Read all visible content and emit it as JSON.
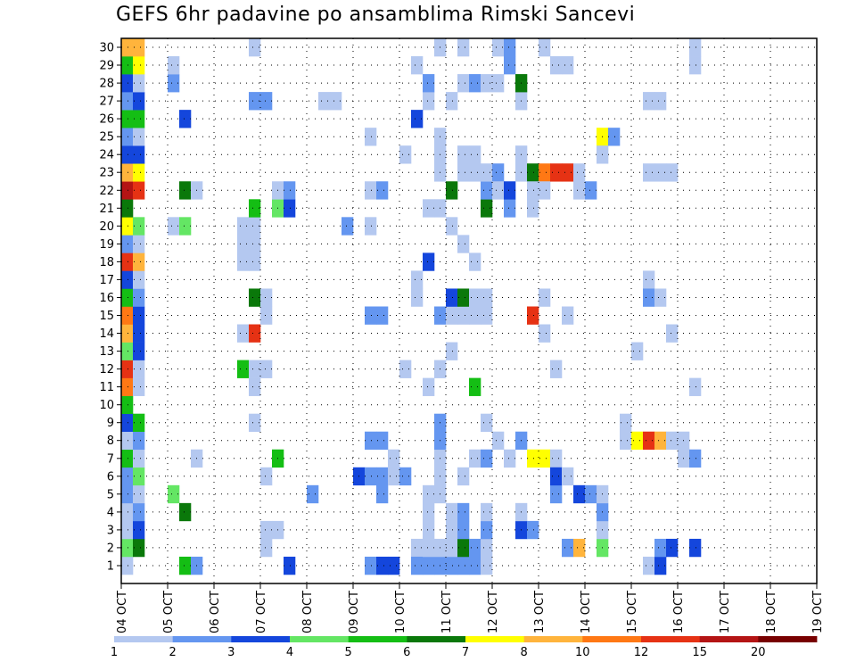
{
  "chart_data": {
    "type": "heatmap",
    "title": "GEFS 6hr padavine po ansamblima Rimski Sancevi",
    "x_labels": [
      "04 OCT",
      "05 OCT",
      "06 OCT",
      "07 OCT",
      "08 OCT",
      "09 OCT",
      "10 OCT",
      "11 OCT",
      "12 OCT",
      "13 OCT",
      "14 OCT",
      "15 OCT",
      "16 OCT",
      "17 OCT",
      "18 OCT",
      "19 OCT"
    ],
    "y_labels": [
      "1",
      "2",
      "3",
      "4",
      "5",
      "6",
      "7",
      "8",
      "9",
      "10",
      "11",
      "12",
      "13",
      "14",
      "15",
      "16",
      "17",
      "18",
      "19",
      "20",
      "21",
      "22",
      "23",
      "24",
      "25",
      "26",
      "27",
      "28",
      "29",
      "30"
    ],
    "colorbar": {
      "colors": [
        "#b4c8f0",
        "#6496f0",
        "#1446dc",
        "#64e664",
        "#14be14",
        "#0a780a",
        "#ffff00",
        "#ffb43c",
        "#ff7814",
        "#e63214",
        "#b41414",
        "#780000"
      ],
      "labels": [
        "1",
        "2",
        "3",
        "4",
        "5",
        "6",
        "7",
        "8",
        "10",
        "12",
        "15",
        "20"
      ]
    },
    "grid": true,
    "cells": [
      [
        0,
        0,
        0
      ],
      [
        0,
        1,
        3
      ],
      [
        0,
        2,
        0
      ],
      [
        0,
        3,
        0
      ],
      [
        0,
        4,
        1
      ],
      [
        0,
        5,
        1
      ],
      [
        0,
        6,
        4
      ],
      [
        0,
        7,
        0
      ],
      [
        0,
        8,
        2
      ],
      [
        0,
        9,
        4
      ],
      [
        0,
        10,
        8
      ],
      [
        0,
        11,
        9
      ],
      [
        0,
        12,
        3
      ],
      [
        0,
        13,
        7
      ],
      [
        0,
        14,
        8
      ],
      [
        0,
        15,
        4
      ],
      [
        0,
        16,
        2
      ],
      [
        0,
        17,
        9
      ],
      [
        0,
        18,
        1
      ],
      [
        0,
        19,
        6
      ],
      [
        0,
        20,
        5
      ],
      [
        0,
        21,
        10
      ],
      [
        0,
        22,
        7
      ],
      [
        0,
        23,
        2
      ],
      [
        0,
        24,
        1
      ],
      [
        0,
        25,
        4
      ],
      [
        0,
        26,
        1
      ],
      [
        0,
        27,
        2
      ],
      [
        0,
        28,
        4
      ],
      [
        0,
        29,
        7
      ],
      [
        1,
        1,
        5
      ],
      [
        1,
        2,
        2
      ],
      [
        1,
        3,
        1
      ],
      [
        1,
        4,
        0
      ],
      [
        1,
        5,
        3
      ],
      [
        1,
        6,
        0
      ],
      [
        1,
        7,
        1
      ],
      [
        1,
        8,
        4
      ],
      [
        1,
        10,
        0
      ],
      [
        1,
        11,
        0
      ],
      [
        1,
        12,
        2
      ],
      [
        1,
        13,
        2
      ],
      [
        1,
        14,
        2
      ],
      [
        1,
        15,
        1
      ],
      [
        1,
        16,
        0
      ],
      [
        1,
        17,
        7
      ],
      [
        1,
        18,
        0
      ],
      [
        1,
        19,
        3
      ],
      [
        1,
        21,
        9
      ],
      [
        1,
        22,
        6
      ],
      [
        1,
        23,
        2
      ],
      [
        1,
        24,
        0
      ],
      [
        1,
        25,
        4
      ],
      [
        1,
        26,
        2
      ],
      [
        1,
        27,
        0
      ],
      [
        1,
        28,
        6
      ],
      [
        1,
        29,
        7
      ],
      [
        4,
        4,
        3
      ],
      [
        4,
        19,
        0
      ],
      [
        4,
        27,
        1
      ],
      [
        4,
        28,
        0
      ],
      [
        5,
        0,
        4
      ],
      [
        5,
        3,
        5
      ],
      [
        5,
        19,
        3
      ],
      [
        5,
        21,
        5
      ],
      [
        5,
        25,
        2
      ],
      [
        6,
        0,
        1
      ],
      [
        6,
        6,
        0
      ],
      [
        6,
        21,
        0
      ],
      [
        10,
        13,
        0
      ],
      [
        10,
        17,
        0
      ],
      [
        10,
        18,
        0
      ],
      [
        10,
        19,
        0
      ],
      [
        11,
        17,
        0
      ],
      [
        11,
        18,
        0
      ],
      [
        11,
        19,
        0
      ],
      [
        11,
        29,
        0
      ],
      [
        10,
        11,
        4
      ],
      [
        11,
        8,
        0
      ],
      [
        11,
        10,
        0
      ],
      [
        11,
        11,
        0
      ],
      [
        11,
        13,
        9
      ],
      [
        11,
        15,
        5
      ],
      [
        11,
        20,
        4
      ],
      [
        11,
        26,
        1
      ],
      [
        12,
        26,
        1
      ],
      [
        12,
        11,
        0
      ],
      [
        12,
        1,
        0
      ],
      [
        12,
        2,
        0
      ],
      [
        12,
        5,
        0
      ],
      [
        12,
        14,
        0
      ],
      [
        12,
        15,
        0
      ],
      [
        13,
        2,
        0
      ],
      [
        13,
        20,
        3
      ],
      [
        13,
        6,
        4
      ],
      [
        13,
        21,
        0
      ],
      [
        14,
        0,
        2
      ],
      [
        14,
        20,
        2
      ],
      [
        14,
        21,
        1
      ],
      [
        16,
        4,
        1
      ],
      [
        17,
        26,
        0
      ],
      [
        18,
        26,
        0
      ],
      [
        19,
        19,
        1
      ],
      [
        20,
        5,
        2
      ],
      [
        21,
        5,
        1
      ],
      [
        22,
        5,
        1
      ],
      [
        21,
        7,
        1
      ],
      [
        22,
        7,
        1
      ],
      [
        21,
        14,
        1
      ],
      [
        22,
        14,
        1
      ],
      [
        21,
        21,
        0
      ],
      [
        21,
        24,
        0
      ],
      [
        22,
        21,
        1
      ],
      [
        21,
        0,
        1
      ],
      [
        22,
        0,
        2
      ],
      [
        23,
        0,
        2
      ],
      [
        21,
        19,
        0
      ],
      [
        22,
        4,
        1
      ],
      [
        23,
        5,
        0
      ],
      [
        23,
        6,
        0
      ],
      [
        24,
        5,
        1
      ],
      [
        24,
        11,
        0
      ],
      [
        25,
        1,
        0
      ],
      [
        25,
        0,
        1
      ],
      [
        25,
        15,
        0
      ],
      [
        25,
        16,
        0
      ],
      [
        24,
        23,
        0
      ],
      [
        25,
        28,
        0
      ],
      [
        26,
        0,
        1
      ],
      [
        26,
        1,
        0
      ],
      [
        26,
        2,
        0
      ],
      [
        26,
        3,
        0
      ],
      [
        26,
        4,
        0
      ],
      [
        26,
        10,
        0
      ],
      [
        26,
        20,
        0
      ],
      [
        26,
        17,
        2
      ],
      [
        26,
        26,
        0
      ],
      [
        26,
        27,
        1
      ],
      [
        25,
        25,
        2
      ],
      [
        27,
        0,
        1
      ],
      [
        27,
        1,
        0
      ],
      [
        27,
        4,
        0
      ],
      [
        27,
        5,
        0
      ],
      [
        27,
        6,
        0
      ],
      [
        27,
        7,
        1
      ],
      [
        27,
        8,
        1
      ],
      [
        27,
        11,
        0
      ],
      [
        27,
        14,
        1
      ],
      [
        27,
        20,
        0
      ],
      [
        27,
        22,
        0
      ],
      [
        27,
        23,
        0
      ],
      [
        27,
        29,
        0
      ],
      [
        27,
        24,
        0
      ],
      [
        28,
        0,
        1
      ],
      [
        28,
        1,
        0
      ],
      [
        28,
        2,
        0
      ],
      [
        28,
        3,
        0
      ],
      [
        28,
        12,
        0
      ],
      [
        28,
        14,
        0
      ],
      [
        28,
        15,
        2
      ],
      [
        28,
        19,
        0
      ],
      [
        28,
        21,
        5
      ],
      [
        28,
        26,
        0
      ],
      [
        29,
        0,
        1
      ],
      [
        29,
        1,
        5
      ],
      [
        29,
        2,
        1
      ],
      [
        29,
        3,
        1
      ],
      [
        29,
        5,
        0
      ],
      [
        29,
        14,
        0
      ],
      [
        29,
        15,
        5
      ],
      [
        29,
        18,
        0
      ],
      [
        29,
        22,
        0
      ],
      [
        29,
        23,
        0
      ],
      [
        29,
        27,
        0
      ],
      [
        29,
        29,
        0
      ],
      [
        30,
        0,
        1
      ],
      [
        30,
        1,
        1
      ],
      [
        30,
        6,
        0
      ],
      [
        30,
        10,
        4
      ],
      [
        30,
        14,
        0
      ],
      [
        30,
        15,
        0
      ],
      [
        30,
        17,
        0
      ],
      [
        30,
        22,
        0
      ],
      [
        30,
        23,
        0
      ],
      [
        30,
        27,
        1
      ],
      [
        31,
        0,
        0
      ],
      [
        31,
        1,
        0
      ],
      [
        31,
        2,
        1
      ],
      [
        31,
        3,
        0
      ],
      [
        31,
        6,
        1
      ],
      [
        31,
        8,
        0
      ],
      [
        31,
        14,
        0
      ],
      [
        31,
        15,
        0
      ],
      [
        31,
        20,
        5
      ],
      [
        31,
        21,
        1
      ],
      [
        31,
        22,
        0
      ],
      [
        31,
        27,
        0
      ],
      [
        32,
        7,
        0
      ],
      [
        32,
        22,
        1
      ],
      [
        32,
        21,
        0
      ],
      [
        32,
        27,
        0
      ],
      [
        32,
        29,
        0
      ],
      [
        33,
        20,
        1
      ],
      [
        33,
        6,
        0
      ],
      [
        33,
        21,
        2
      ],
      [
        33,
        29,
        1
      ],
      [
        33,
        28,
        1
      ],
      [
        34,
        2,
        2
      ],
      [
        34,
        3,
        0
      ],
      [
        34,
        7,
        1
      ],
      [
        34,
        22,
        0
      ],
      [
        34,
        23,
        0
      ],
      [
        34,
        26,
        0
      ],
      [
        34,
        27,
        5
      ],
      [
        35,
        2,
        1
      ],
      [
        35,
        6,
        6
      ],
      [
        35,
        14,
        9
      ],
      [
        35,
        22,
        5
      ],
      [
        35,
        20,
        0
      ],
      [
        35,
        21,
        0
      ],
      [
        36,
        6,
        6
      ],
      [
        36,
        13,
        0
      ],
      [
        36,
        15,
        0
      ],
      [
        36,
        22,
        8
      ],
      [
        36,
        21,
        0
      ],
      [
        36,
        29,
        0
      ],
      [
        37,
        6,
        0
      ],
      [
        37,
        22,
        9
      ],
      [
        37,
        4,
        1
      ],
      [
        37,
        5,
        2
      ],
      [
        37,
        28,
        0
      ],
      [
        37,
        11,
        0
      ],
      [
        38,
        1,
        1
      ],
      [
        38,
        22,
        9
      ],
      [
        38,
        5,
        0
      ],
      [
        38,
        28,
        0
      ],
      [
        38,
        14,
        0
      ],
      [
        39,
        1,
        7
      ],
      [
        39,
        21,
        0
      ],
      [
        39,
        22,
        0
      ],
      [
        39,
        4,
        2
      ],
      [
        40,
        4,
        1
      ],
      [
        40,
        21,
        1
      ],
      [
        41,
        1,
        3
      ],
      [
        41,
        2,
        0
      ],
      [
        41,
        3,
        1
      ],
      [
        41,
        4,
        0
      ],
      [
        41,
        24,
        6
      ],
      [
        41,
        23,
        0
      ],
      [
        42,
        24,
        1
      ],
      [
        43,
        7,
        0
      ],
      [
        43,
        8,
        0
      ],
      [
        44,
        7,
        6
      ],
      [
        45,
        7,
        9
      ],
      [
        46,
        7,
        7
      ],
      [
        47,
        7,
        0
      ],
      [
        45,
        22,
        0
      ],
      [
        46,
        22,
        0
      ],
      [
        47,
        22,
        0
      ],
      [
        44,
        12,
        0
      ],
      [
        45,
        16,
        0
      ],
      [
        45,
        26,
        0
      ],
      [
        46,
        26,
        0
      ],
      [
        45,
        15,
        1
      ],
      [
        46,
        15,
        0
      ],
      [
        45,
        0,
        0
      ],
      [
        46,
        0,
        2
      ],
      [
        46,
        1,
        1
      ],
      [
        47,
        1,
        2
      ],
      [
        47,
        13,
        0
      ],
      [
        48,
        7,
        0
      ],
      [
        48,
        6,
        0
      ],
      [
        49,
        6,
        1
      ],
      [
        49,
        10,
        0
      ],
      [
        49,
        1,
        2
      ],
      [
        49,
        29,
        0
      ],
      [
        49,
        28,
        0
      ]
    ]
  }
}
